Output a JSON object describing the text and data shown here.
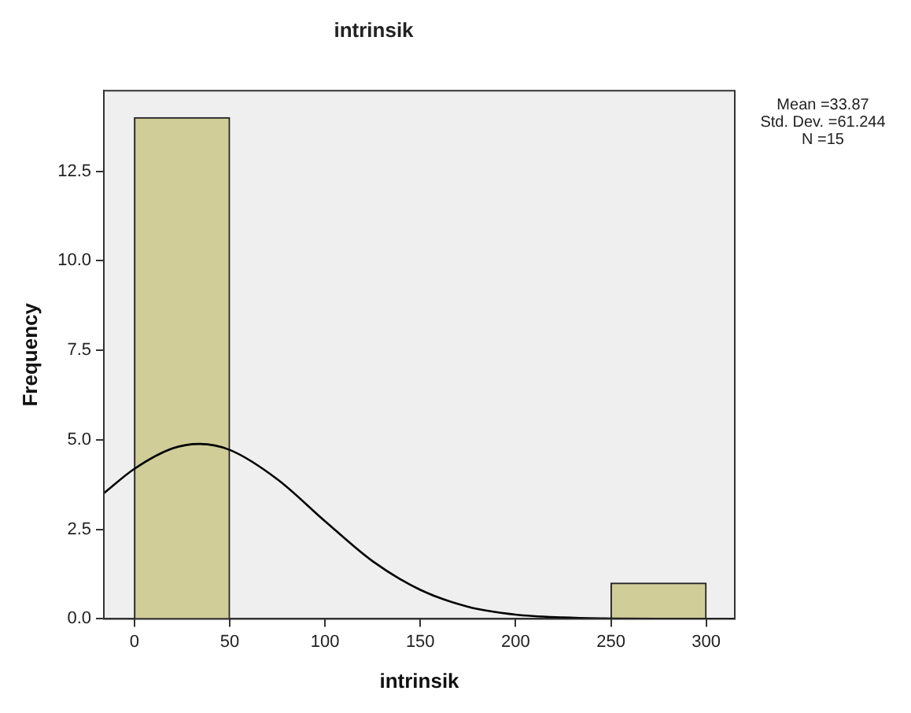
{
  "chart_data": {
    "type": "histogram",
    "title": "intrinsik",
    "xlabel": "intrinsik",
    "ylabel": "Frequency",
    "bins": [
      0,
      50,
      100,
      150,
      200,
      250,
      300
    ],
    "values": [
      14,
      0,
      0,
      0,
      0,
      1
    ],
    "color": "#d1cd98",
    "series": [
      {
        "type": "line",
        "color": "#000000",
        "x": [
          -16,
          0,
          20,
          34,
          50,
          75,
          100,
          125,
          150,
          175,
          200,
          225,
          250,
          275,
          300,
          315
        ],
        "values": [
          3.51,
          4.19,
          4.76,
          4.885,
          4.72,
          3.9,
          2.73,
          1.61,
          0.81,
          0.34,
          0.12,
          0.04,
          0.01,
          0,
          0,
          0
        ]
      }
    ],
    "xlim": [
      -16,
      315
    ],
    "xticks": [
      0,
      50,
      100,
      150,
      200,
      250,
      300
    ],
    "ylim": [
      0,
      14.75
    ],
    "yticks": [
      {
        "value": 0,
        "label": "0.0"
      },
      {
        "value": 2.5,
        "label": "2.5"
      },
      {
        "value": 5,
        "label": "5.0"
      },
      {
        "value": 7.5,
        "label": "7.5"
      },
      {
        "value": 10,
        "label": "10.0"
      },
      {
        "value": 12.5,
        "label": "12.5"
      }
    ],
    "annotations": [
      "Mean =33.87",
      "Std. Dev. =61.244",
      "N =15"
    ],
    "grid": false,
    "legend": false,
    "marker": "none"
  }
}
